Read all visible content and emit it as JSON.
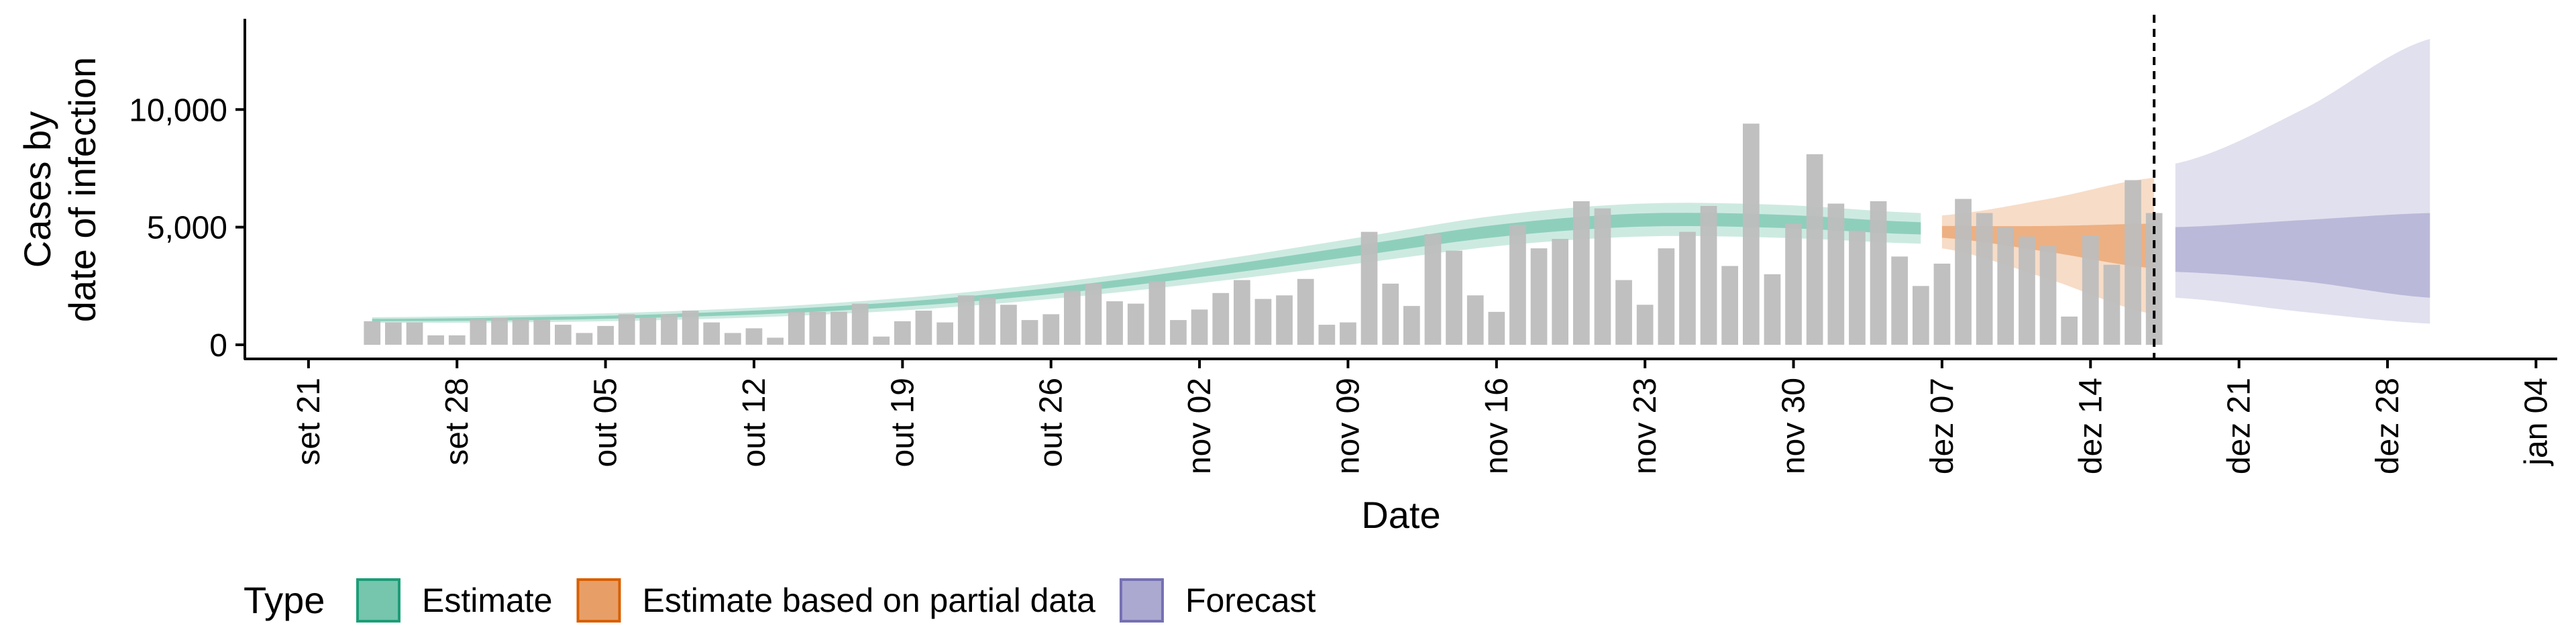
{
  "chart_data": {
    "type": "bar",
    "ylabel": [
      "Cases by",
      "date of infection"
    ],
    "xlabel": "Date",
    "ylim": [
      -600,
      13800
    ],
    "yticks": [
      0,
      5000,
      10000
    ],
    "ytick_labels": [
      "0",
      "5,000",
      "10,000"
    ],
    "xticks": [
      {
        "date": "2020-09-21",
        "label": "set 21"
      },
      {
        "date": "2020-09-28",
        "label": "set 28"
      },
      {
        "date": "2020-10-05",
        "label": "out 05"
      },
      {
        "date": "2020-10-12",
        "label": "out 12"
      },
      {
        "date": "2020-10-19",
        "label": "out 19"
      },
      {
        "date": "2020-10-26",
        "label": "out 26"
      },
      {
        "date": "2020-11-02",
        "label": "nov 02"
      },
      {
        "date": "2020-11-09",
        "label": "nov 09"
      },
      {
        "date": "2020-11-16",
        "label": "nov 16"
      },
      {
        "date": "2020-11-23",
        "label": "nov 23"
      },
      {
        "date": "2020-11-30",
        "label": "nov 30"
      },
      {
        "date": "2020-12-07",
        "label": "dez 07"
      },
      {
        "date": "2020-12-14",
        "label": "dez 14"
      },
      {
        "date": "2020-12-21",
        "label": "dez 21"
      },
      {
        "date": "2020-12-28",
        "label": "dez 28"
      },
      {
        "date": "2021-01-04",
        "label": "jan 04"
      }
    ],
    "xlim": [
      "2020-09-18",
      "2021-01-05"
    ],
    "reference_date": "2020-12-17",
    "bars": {
      "start_date": "2020-09-24",
      "values": [
        1000,
        950,
        950,
        400,
        400,
        1100,
        1150,
        1100,
        1050,
        850,
        500,
        800,
        1300,
        1150,
        1300,
        1450,
        950,
        500,
        700,
        300,
        1400,
        1400,
        1400,
        1750,
        350,
        1000,
        1450,
        950,
        2100,
        2000,
        1700,
        1050,
        1300,
        2300,
        2600,
        1850,
        1750,
        2700,
        1050,
        1500,
        2200,
        2750,
        1950,
        2100,
        2800,
        850,
        950,
        4800,
        2600,
        1650,
        4700,
        4000,
        2100,
        1400,
        5100,
        4100,
        4500,
        6100,
        5800,
        2750,
        1700,
        4100,
        4800,
        5900,
        3350,
        9400,
        3000,
        5150,
        8100,
        6000,
        4850,
        6100,
        3750,
        2500,
        3450,
        6200,
        5600,
        5000,
        4600,
        4200,
        1200,
        4650,
        3400,
        7000,
        5600
      ],
      "color": "#bdbdbd"
    },
    "series": [
      {
        "name": "Estimate",
        "color": "#1b9e77",
        "start_date": "2020-09-24",
        "end_date": "2020-12-06",
        "center": [
          1050,
          1100,
          1220,
          1450,
          1830,
          2400,
          3150,
          4000,
          4850,
          5300,
          5250,
          4950
        ],
        "outer_half_width": [
          120,
          150,
          180,
          220,
          280,
          350,
          450,
          550,
          650,
          700,
          700,
          650
        ],
        "inner_half_width": [
          50,
          60,
          70,
          90,
          110,
          140,
          180,
          220,
          260,
          280,
          280,
          260
        ]
      },
      {
        "name": "Estimate based on partial data",
        "color": "#d95f02",
        "start_date": "2020-12-07",
        "end_date": "2020-12-17",
        "center": [
          4800,
          4500,
          4200
        ],
        "outer_half_width": [
          700,
          1700,
          2900
        ],
        "inner_half_width": [
          250,
          550,
          950
        ]
      },
      {
        "name": "Forecast",
        "color": "#7570b3",
        "start_date": "2020-12-18",
        "end_date": "2020-12-30",
        "center": [
          4150,
          3900,
          3550
        ],
        "outer_low": [
          2000,
          1400,
          900
        ],
        "outer_high": [
          7700,
          10000,
          13000
        ],
        "inner_low": [
          3100,
          2700,
          2000
        ],
        "inner_high": [
          5000,
          5300,
          5600
        ]
      }
    ],
    "legend": {
      "position": "bottom",
      "title": "Type",
      "items": [
        {
          "label": "Estimate",
          "color": "#1b9e77"
        },
        {
          "label": "Estimate based on partial data",
          "color": "#d95f02"
        },
        {
          "label": "Forecast",
          "color": "#7570b3"
        }
      ]
    },
    "grid": false
  }
}
